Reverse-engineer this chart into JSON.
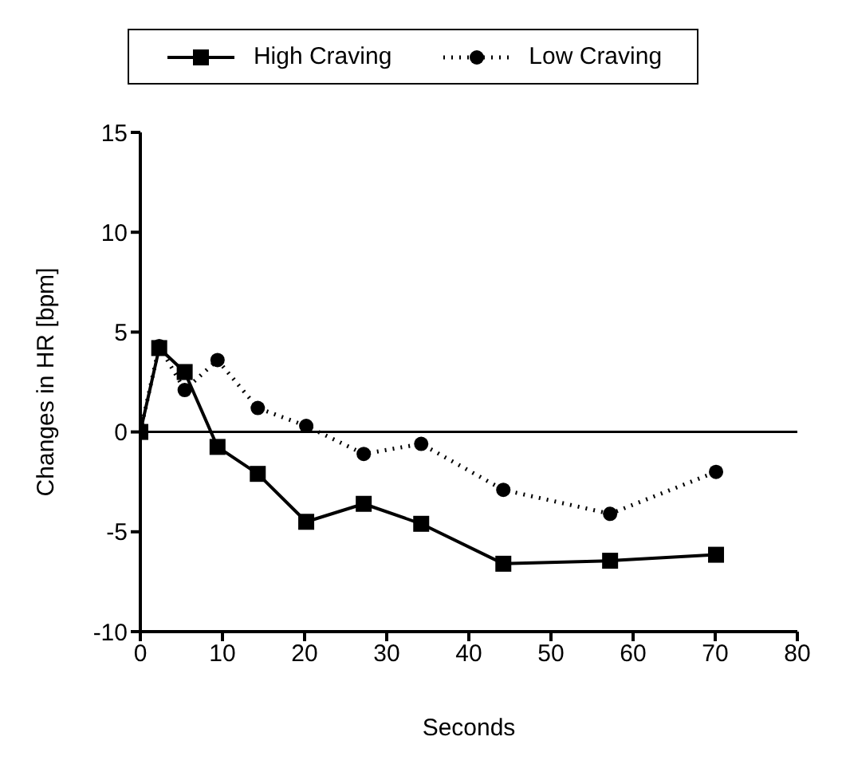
{
  "chart_data": {
    "type": "line",
    "xlabel": "Seconds",
    "ylabel": "Changes in HR [bpm]",
    "x": [
      0,
      2.3,
      5.4,
      9.4,
      14.3,
      20.2,
      27.2,
      34.2,
      44.2,
      57.2,
      70.1
    ],
    "series": [
      {
        "name": "High Craving",
        "color": "#000000",
        "marker": "square",
        "line_style": "solid",
        "values": [
          0,
          4.2,
          3.0,
          -0.75,
          -2.1,
          -4.5,
          -3.6,
          -4.6,
          -6.6,
          -6.45,
          -6.15
        ]
      },
      {
        "name": "Low Craving",
        "color": "#000000",
        "marker": "circle",
        "line_style": "dotted",
        "values": [
          0,
          4.3,
          2.1,
          3.6,
          1.2,
          0.3,
          -1.1,
          -0.6,
          -2.9,
          -4.1,
          -2.0
        ]
      }
    ],
    "xlim": [
      0,
      80
    ],
    "xticks": [
      0,
      10,
      20,
      30,
      40,
      50,
      60,
      70,
      80
    ],
    "ylim": [
      -10,
      15
    ],
    "yticks": [
      -10,
      -5,
      0,
      5,
      10,
      15
    ],
    "ref_lines": [
      {
        "axis": "y",
        "value": 0,
        "color": "#000000",
        "line_style": "solid"
      }
    ],
    "grid": false,
    "legend": "top"
  }
}
